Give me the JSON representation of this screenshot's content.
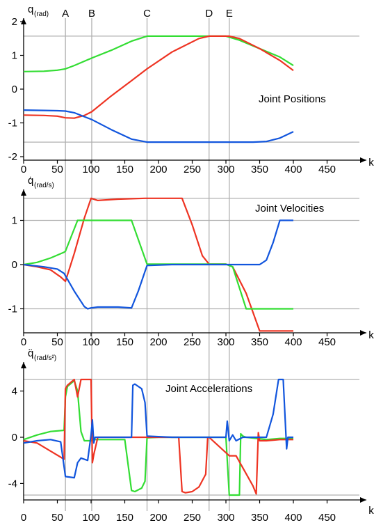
{
  "chart_data": [
    {
      "type": "line",
      "title": "Joint Positions",
      "ylabel": "q",
      "ylabel_sub": "(rad)",
      "xlabel": "k",
      "xlim": [
        0,
        485
      ],
      "ylim": [
        -2,
        2
      ],
      "xticks": [
        "0",
        "50",
        "100",
        "150",
        "200",
        "250",
        "300",
        "350",
        "400",
        "450"
      ],
      "yticks": [
        "2",
        "1",
        "0",
        "-1",
        "-2"
      ],
      "ytick_values": [
        2,
        1,
        0,
        -1,
        -2
      ],
      "hlines": [
        1.57,
        -1.57
      ],
      "markers": [
        {
          "label": "A",
          "x": 62
        },
        {
          "label": "B",
          "x": 101
        },
        {
          "label": "C",
          "x": 183
        },
        {
          "label": "D",
          "x": 275
        },
        {
          "label": "E",
          "x": 305
        }
      ],
      "series": [
        {
          "color": "#33dd33",
          "x": [
            0,
            30,
            50,
            62,
            75,
            101,
            130,
            160,
            183,
            220,
            260,
            300,
            320,
            350,
            380,
            400
          ],
          "y": [
            0.52,
            0.53,
            0.56,
            0.6,
            0.7,
            0.92,
            1.15,
            1.42,
            1.57,
            1.57,
            1.57,
            1.57,
            1.45,
            1.2,
            0.95,
            0.7
          ]
        },
        {
          "color": "#ee3322",
          "x": [
            0,
            30,
            50,
            62,
            75,
            90,
            101,
            130,
            160,
            183,
            220,
            260,
            275,
            305,
            320,
            350,
            380,
            400
          ],
          "y": [
            -0.77,
            -0.78,
            -0.8,
            -0.85,
            -0.86,
            -0.78,
            -0.67,
            -0.2,
            0.25,
            0.6,
            1.1,
            1.5,
            1.57,
            1.57,
            1.5,
            1.2,
            0.85,
            0.55
          ]
        },
        {
          "color": "#1155dd",
          "x": [
            0,
            30,
            50,
            62,
            75,
            101,
            130,
            160,
            183,
            220,
            260,
            300,
            340,
            360,
            380,
            400
          ],
          "y": [
            -0.62,
            -0.63,
            -0.64,
            -0.65,
            -0.7,
            -0.9,
            -1.2,
            -1.48,
            -1.57,
            -1.57,
            -1.57,
            -1.57,
            -1.57,
            -1.55,
            -1.45,
            -1.26
          ]
        }
      ]
    },
    {
      "type": "line",
      "title": "Joint Velocities",
      "ylabel": "q̇",
      "ylabel_sub": "(rad/s)",
      "xlabel": "k",
      "xlim": [
        0,
        485
      ],
      "ylim": [
        -1.55,
        1.6
      ],
      "xticks": [
        "0",
        "50",
        "100",
        "150",
        "200",
        "250",
        "300",
        "350",
        "400",
        "450"
      ],
      "yticks": [
        "1",
        "0",
        "-1"
      ],
      "ytick_values": [
        1,
        0,
        -1
      ],
      "hlines": [
        1.5,
        1,
        -1
      ],
      "series": [
        {
          "color": "#ee3322",
          "x": [
            0,
            20,
            40,
            55,
            62,
            75,
            90,
            100,
            110,
            140,
            180,
            235,
            250,
            265,
            275,
            300,
            310,
            330,
            350,
            400
          ],
          "y": [
            0,
            -0.05,
            -0.12,
            -0.28,
            -0.38,
            0.25,
            1.05,
            1.5,
            1.45,
            1.48,
            1.5,
            1.5,
            0.9,
            0.2,
            0.01,
            0.01,
            -0.05,
            -0.65,
            -1.5,
            -1.5
          ]
        },
        {
          "color": "#33dd33",
          "x": [
            0,
            20,
            40,
            60,
            62,
            80,
            100,
            160,
            183,
            220,
            260,
            300,
            310,
            330,
            350,
            400
          ],
          "y": [
            0,
            0.05,
            0.15,
            0.28,
            0.3,
            1.0,
            1.0,
            1.0,
            0.01,
            0.01,
            0.01,
            0.01,
            -0.05,
            -1.0,
            -1.0,
            -1.0
          ]
        },
        {
          "color": "#1155dd",
          "x": [
            0,
            30,
            50,
            60,
            75,
            90,
            95,
            100,
            110,
            140,
            160,
            170,
            183,
            220,
            260,
            300,
            350,
            360,
            370,
            380,
            400
          ],
          "y": [
            0,
            -0.05,
            -0.1,
            -0.2,
            -0.6,
            -0.95,
            -1.0,
            -0.98,
            -0.96,
            -0.96,
            -0.98,
            -0.6,
            -0.02,
            0,
            0,
            0,
            0,
            0.1,
            0.5,
            1.0,
            1.0
          ]
        }
      ]
    },
    {
      "type": "line",
      "title": "Joint Accelerations",
      "ylabel": "q̈",
      "ylabel_sub": "(rad/s²)",
      "xlabel": "k",
      "xlim": [
        0,
        485
      ],
      "ylim": [
        -5.2,
        5.4
      ],
      "xticks": [
        "0",
        "50",
        "100",
        "150",
        "200",
        "250",
        "300",
        "350",
        "400",
        "450"
      ],
      "yticks": [
        "4",
        "0",
        "-4"
      ],
      "ytick_values": [
        4,
        0,
        -4
      ],
      "hlines": [
        5,
        -5
      ],
      "series": [
        {
          "color": "#33dd33",
          "x": [
            0,
            20,
            40,
            60,
            62,
            65,
            75,
            80,
            85,
            90,
            100,
            105,
            110,
            150,
            160,
            165,
            175,
            180,
            183,
            200,
            300,
            305,
            310,
            315,
            320,
            322,
            325,
            330,
            360,
            380,
            400
          ],
          "y": [
            -0.2,
            0.2,
            0.5,
            0.6,
            3.5,
            4.4,
            4.9,
            4.0,
            0.5,
            -0.3,
            -0.3,
            -0.2,
            -0.2,
            -0.2,
            -4.6,
            -4.7,
            -4.4,
            -3.8,
            -0.05,
            0,
            0,
            -5.0,
            -5.0,
            -5.0,
            -5.0,
            0.3,
            0.1,
            0,
            -0.2,
            -0.1,
            -0.1
          ]
        },
        {
          "color": "#ee3322",
          "x": [
            0,
            20,
            40,
            60,
            62,
            65,
            75,
            80,
            85,
            100,
            102,
            104,
            110,
            150,
            200,
            230,
            235,
            240,
            250,
            260,
            270,
            273,
            275,
            305,
            315,
            340,
            345,
            348,
            350,
            360,
            380,
            400
          ],
          "y": [
            -0.3,
            -0.5,
            -1.2,
            -1.9,
            4.2,
            4.5,
            5.0,
            3.5,
            5.0,
            5.0,
            -2.2,
            -1.5,
            0,
            0,
            0,
            0,
            -4.7,
            -4.8,
            -4.7,
            -4.3,
            -3.2,
            0,
            0,
            -1.6,
            -1.6,
            -4.2,
            -4.9,
            0.4,
            -0.3,
            -0.3,
            -0.2,
            -0.2
          ]
        },
        {
          "color": "#1155dd",
          "x": [
            0,
            20,
            40,
            55,
            62,
            75,
            80,
            85,
            95,
            100,
            102,
            104,
            106,
            110,
            160,
            162,
            165,
            175,
            180,
            183,
            220,
            300,
            302,
            305,
            310,
            315,
            325,
            360,
            370,
            378,
            385,
            390,
            392,
            400
          ],
          "y": [
            -0.5,
            -0.3,
            -0.2,
            -0.4,
            -3.4,
            -3.5,
            -2.2,
            -1.8,
            -2.0,
            0.2,
            1.5,
            -0.5,
            0,
            0,
            0,
            4.5,
            4.6,
            4.2,
            3.0,
            0.1,
            0,
            0,
            1.4,
            -0.3,
            0.2,
            -0.3,
            0,
            0,
            2.0,
            5.0,
            5.0,
            -1.0,
            0,
            0
          ]
        }
      ]
    }
  ]
}
